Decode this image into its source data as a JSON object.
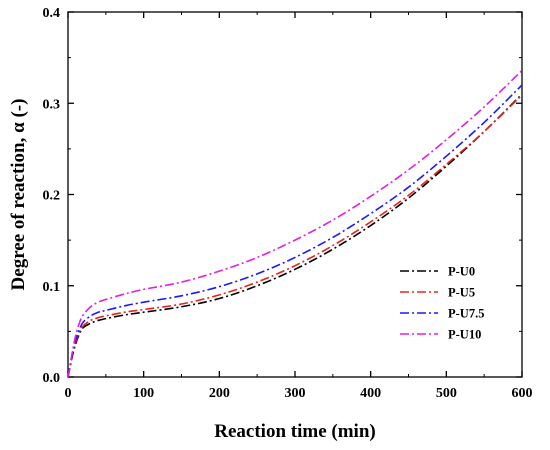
{
  "chart_data": {
    "type": "line",
    "title": "",
    "xlabel": "Reaction time (min)",
    "ylabel": "Degree of reaction, α (-)",
    "xlim": [
      0,
      600
    ],
    "ylim": [
      0,
      0.4
    ],
    "x_ticks": [
      "0",
      "100",
      "200",
      "300",
      "400",
      "500",
      "600"
    ],
    "y_ticks": [
      "0.0",
      "0.1",
      "0.2",
      "0.3",
      "0.4"
    ],
    "grid": false,
    "legend_position": "lower-right",
    "series": [
      {
        "name": "P-U0",
        "color": "#000000",
        "x": [
          0,
          5,
          10,
          15,
          20,
          30,
          40,
          50,
          75,
          100,
          150,
          200,
          250,
          300,
          350,
          400,
          450,
          500,
          550,
          600
        ],
        "y": [
          0,
          0.02,
          0.036,
          0.047,
          0.054,
          0.059,
          0.062,
          0.064,
          0.068,
          0.071,
          0.077,
          0.086,
          0.1,
          0.118,
          0.14,
          0.166,
          0.196,
          0.231,
          0.269,
          0.31
        ]
      },
      {
        "name": "P-U5",
        "color": "#e8231b",
        "x": [
          0,
          5,
          10,
          15,
          20,
          30,
          40,
          50,
          75,
          100,
          150,
          200,
          250,
          300,
          350,
          400,
          450,
          500,
          550,
          600
        ],
        "y": [
          0,
          0.021,
          0.038,
          0.049,
          0.056,
          0.062,
          0.065,
          0.067,
          0.071,
          0.074,
          0.08,
          0.09,
          0.104,
          0.122,
          0.144,
          0.17,
          0.199,
          0.233,
          0.269,
          0.309
        ]
      },
      {
        "name": "P-U7.5",
        "color": "#1a1aff",
        "x": [
          0,
          5,
          10,
          15,
          20,
          30,
          40,
          50,
          75,
          100,
          150,
          200,
          250,
          300,
          350,
          400,
          450,
          500,
          550,
          600
        ],
        "y": [
          0,
          0.022,
          0.04,
          0.052,
          0.06,
          0.067,
          0.071,
          0.073,
          0.078,
          0.082,
          0.089,
          0.099,
          0.113,
          0.131,
          0.153,
          0.179,
          0.208,
          0.242,
          0.279,
          0.32
        ]
      },
      {
        "name": "P-U10",
        "color": "#e31ee3",
        "x": [
          0,
          5,
          10,
          15,
          20,
          30,
          40,
          50,
          75,
          100,
          150,
          200,
          250,
          300,
          350,
          400,
          450,
          500,
          550,
          600
        ],
        "y": [
          0,
          0.024,
          0.045,
          0.059,
          0.068,
          0.077,
          0.082,
          0.085,
          0.091,
          0.096,
          0.104,
          0.116,
          0.131,
          0.15,
          0.172,
          0.198,
          0.227,
          0.26,
          0.296,
          0.336
        ]
      }
    ]
  }
}
